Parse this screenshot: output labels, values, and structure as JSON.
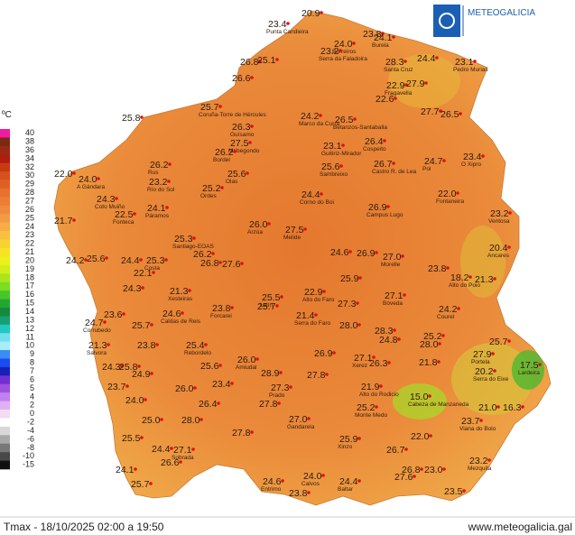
{
  "header": {
    "logo_text": "METEOGALICIA"
  },
  "legend": {
    "unit": "ºC",
    "labels": [
      "40",
      "38",
      "36",
      "34",
      "32",
      "30",
      "29",
      "28",
      "27",
      "26",
      "25",
      "24",
      "23",
      "22",
      "21",
      "20",
      "19",
      "18",
      "17",
      "16",
      "15",
      "14",
      "13",
      "12",
      "11",
      "10",
      "9",
      "8",
      "7",
      "6",
      "5",
      "4",
      "2",
      "0",
      "-2",
      "-4",
      "-6",
      "-8",
      "-10",
      "-15"
    ],
    "colors": [
      "#f21aa0",
      "#7a2a10",
      "#9a2a12",
      "#b01c10",
      "#c83a14",
      "#d8501c",
      "#e06024",
      "#e87030",
      "#ee7c36",
      "#f08a40",
      "#f49a44",
      "#f7ac44",
      "#f8c040",
      "#f8d230",
      "#f4e424",
      "#eef01a",
      "#d2ee18",
      "#aae61c",
      "#7edc22",
      "#48c628",
      "#22a830",
      "#168a3c",
      "#18a070",
      "#20c8c0",
      "#70e0f0",
      "#a8eefa",
      "#3a8cf8",
      "#1a4cf0",
      "#1820b8",
      "#7030d0",
      "#a050e0",
      "#c080f0",
      "#e0b0f4",
      "#f4dcf0",
      "#ffffff",
      "#d8d8d8",
      "#a8a8a8",
      "#787878",
      "#484848",
      "#101010"
    ]
  },
  "stations": [
    {
      "value": "23.4",
      "name": "Punta Candieira"
    },
    {
      "value": "20.9"
    },
    {
      "value": "23.8"
    },
    {
      "value": "24.1",
      "name": "Burela"
    },
    {
      "value": "24.0",
      "name": "Borreiros"
    },
    {
      "value": "23.2",
      "name": "Serra da Faladoira"
    },
    {
      "value": "24.4"
    },
    {
      "value": "23.1",
      "name": "Pedro Murias"
    },
    {
      "value": "26.8"
    },
    {
      "value": "25.1"
    },
    {
      "value": "26.6"
    },
    {
      "value": "28.3",
      "name": "Santa Cruz"
    },
    {
      "value": "22.9",
      "name": "Fragavella"
    },
    {
      "value": "27.9"
    },
    {
      "value": "22.6"
    },
    {
      "value": "25.7",
      "name": "Coruña-Torre de Hércules"
    },
    {
      "value": "25.8"
    },
    {
      "value": "27.7"
    },
    {
      "value": "26.5"
    },
    {
      "value": "24.2",
      "name": "Marco da Curra"
    },
    {
      "value": "26.5",
      "name": "Betanzos-Santaballa"
    },
    {
      "value": "26.3",
      "name": "Guísamo"
    },
    {
      "value": "27.5",
      "name": "Mabegondo"
    },
    {
      "value": "26.2",
      "name": "Bordel"
    },
    {
      "value": "23.1",
      "name": "Guitiriz-Mirador"
    },
    {
      "value": "26.4",
      "name": "Cospeito"
    },
    {
      "value": "26.2",
      "name": "Rus"
    },
    {
      "value": "25.6",
      "name": "Sambreixo"
    },
    {
      "value": "26.7",
      "name": "Castro R. de Lea"
    },
    {
      "value": "24.7",
      "name": "Pol"
    },
    {
      "value": "23.4",
      "name": "O Xipro"
    },
    {
      "value": "25.6",
      "name": "Olas"
    },
    {
      "value": "22.0"
    },
    {
      "value": "24.0",
      "name": "A Gándara"
    },
    {
      "value": "23.2",
      "name": "Río do Sol"
    },
    {
      "value": "25.2",
      "name": "Ordes"
    },
    {
      "value": "24.3",
      "name": "Coto Muiño"
    },
    {
      "value": "24.4",
      "name": "Corno do Boi"
    },
    {
      "value": "22.0",
      "name": "Fontaneira"
    },
    {
      "value": "24.1",
      "name": "Páramos"
    },
    {
      "value": "26.9",
      "name": "Campus Lugo"
    },
    {
      "value": "22.5",
      "name": "Fonteca"
    },
    {
      "value": "23.2",
      "name": "Ventosa"
    },
    {
      "value": "21.7"
    },
    {
      "value": "26.0",
      "name": "Arzúa"
    },
    {
      "value": "27.5",
      "name": "Melide"
    },
    {
      "value": "25.3",
      "name": "Santiago-EOAS"
    },
    {
      "value": "20.4",
      "name": "Ancares"
    },
    {
      "value": "24.6"
    },
    {
      "value": "26.9"
    },
    {
      "value": "27.0",
      "name": "Morelle"
    },
    {
      "value": "24.2"
    },
    {
      "value": "25.6"
    },
    {
      "value": "24.4"
    },
    {
      "value": "25.3",
      "name": "Costa"
    },
    {
      "value": "26.2"
    },
    {
      "value": "26.8"
    },
    {
      "value": "27.6"
    },
    {
      "value": "23.8"
    },
    {
      "value": "18.2",
      "name": "Alto do Poio"
    },
    {
      "value": "21.3"
    },
    {
      "value": "22.1"
    },
    {
      "value": "24.3"
    },
    {
      "value": "21.3",
      "name": "Xesteiras"
    },
    {
      "value": "25.5",
      "name": "Lalín"
    },
    {
      "value": "22.9",
      "name": "Alto do Faro"
    },
    {
      "value": "27.1",
      "name": "Bóveda"
    },
    {
      "value": "25.7"
    },
    {
      "value": "23.8",
      "name": "Forcarei"
    },
    {
      "value": "24.6",
      "name": "Caldas de Reis"
    },
    {
      "value": "25.9"
    },
    {
      "value": "27.3"
    },
    {
      "value": "21.4",
      "name": "Serra do Faro"
    },
    {
      "value": "24.2",
      "name": "Courel"
    },
    {
      "value": "24.7",
      "name": "Corrubedo"
    },
    {
      "value": "23.6"
    },
    {
      "value": "25.7"
    },
    {
      "value": "28.0"
    },
    {
      "value": "28.3"
    },
    {
      "value": "24.8"
    },
    {
      "value": "25.2"
    },
    {
      "value": "28.0"
    },
    {
      "value": "25.7"
    },
    {
      "value": "21.3",
      "name": "Salvora"
    },
    {
      "value": "23.8"
    },
    {
      "value": "25.4",
      "name": "Rebordelo"
    },
    {
      "value": "26.9"
    },
    {
      "value": "27.1",
      "name": "Xerez"
    },
    {
      "value": "26.3"
    },
    {
      "value": "21.8"
    },
    {
      "value": "27.9",
      "name": "Portela"
    },
    {
      "value": "20.2",
      "name": "Serra do Eixe"
    },
    {
      "value": "17.5",
      "name": "Lardeira"
    },
    {
      "value": "26.0",
      "name": "Amiudal"
    },
    {
      "value": "24.3"
    },
    {
      "value": "25.8"
    },
    {
      "value": "25.6"
    },
    {
      "value": "27.8"
    },
    {
      "value": "28.9"
    },
    {
      "value": "21.9",
      "name": "Alto do Rodicio"
    },
    {
      "value": "27.3",
      "name": "Prado"
    },
    {
      "value": "24.9"
    },
    {
      "value": "26.0"
    },
    {
      "value": "23.4"
    },
    {
      "value": "15.0",
      "name": "Cabeza de Manzaneda"
    },
    {
      "value": "21.0"
    },
    {
      "value": "16.3"
    },
    {
      "value": "23.7"
    },
    {
      "value": "26.4"
    },
    {
      "value": "27.8"
    },
    {
      "value": "25.2",
      "name": "Monte Medo"
    },
    {
      "value": "27.0",
      "name": "Gandarela"
    },
    {
      "value": "24.0"
    },
    {
      "value": "28.0"
    },
    {
      "value": "23.7",
      "name": "Viana do Bolo"
    },
    {
      "value": "25.0"
    },
    {
      "value": "25.5"
    },
    {
      "value": "22.0"
    },
    {
      "value": "27.8"
    },
    {
      "value": "25.9",
      "name": "Xinzo"
    },
    {
      "value": "24.4"
    },
    {
      "value": "27.1",
      "name": "Sobrada"
    },
    {
      "value": "26.6"
    },
    {
      "value": "26.7"
    },
    {
      "value": "23.2",
      "name": "Mezquita"
    },
    {
      "value": "24.1"
    },
    {
      "value": "27.6"
    },
    {
      "value": "26.8"
    },
    {
      "value": "23.0"
    },
    {
      "value": "24.0",
      "name": "Calvos"
    },
    {
      "value": "24.4",
      "name": "Baltar"
    },
    {
      "value": "24.6",
      "name": "Entrimo"
    },
    {
      "value": "23.8"
    },
    {
      "value": "25.7"
    },
    {
      "value": "23.5"
    }
  ],
  "footer": {
    "caption": "Tmax - 18/10/2025 02:00 a 19:50",
    "url": "www.meteogalicia.gal"
  }
}
